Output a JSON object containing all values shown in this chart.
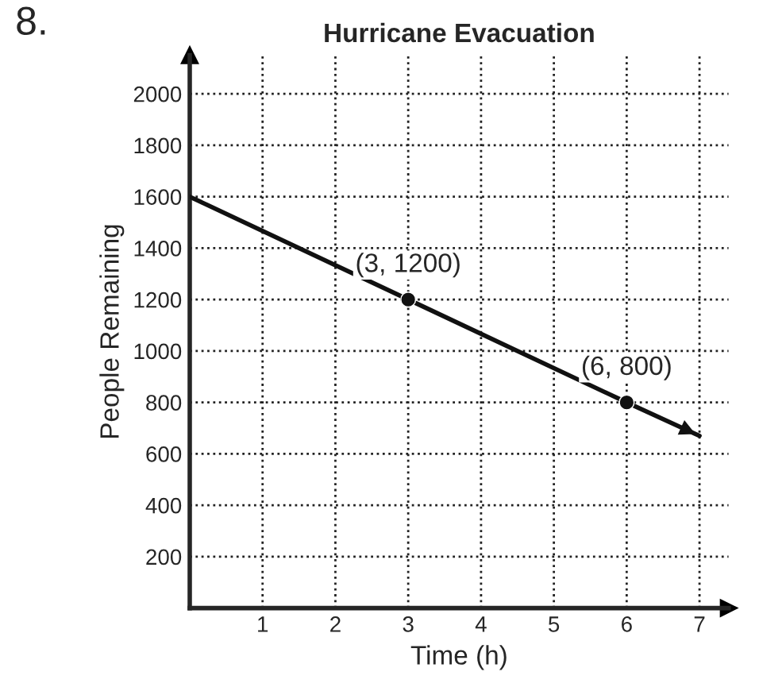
{
  "chart_data": {
    "type": "line",
    "title": "Hurricane Evacuation",
    "xlabel": "Time (h)",
    "ylabel": "People Remaining",
    "series": [
      {
        "color": "#111111",
        "x": [
          0,
          3,
          6,
          7
        ],
        "values": [
          1600,
          1200,
          800,
          670
        ],
        "marker": "none"
      },
      {
        "type": "scatter",
        "color": "#111111",
        "x": [
          3,
          6
        ],
        "values": [
          1200,
          800
        ],
        "marker": "circle"
      }
    ],
    "annotations": [
      "8.",
      {
        "text": "(3, 1200)",
        "x": 3,
        "y": 1200
      },
      {
        "text": "(6, 800)",
        "x": 6,
        "y": 800
      }
    ],
    "xlim": [
      0,
      7.4
    ],
    "ylim": [
      0,
      2150
    ],
    "xticks": [
      1,
      2,
      3,
      4,
      5,
      6,
      7
    ],
    "yticks": [
      200,
      400,
      600,
      800,
      1000,
      1200,
      1400,
      1600,
      1800,
      2000
    ],
    "grid": true
  }
}
